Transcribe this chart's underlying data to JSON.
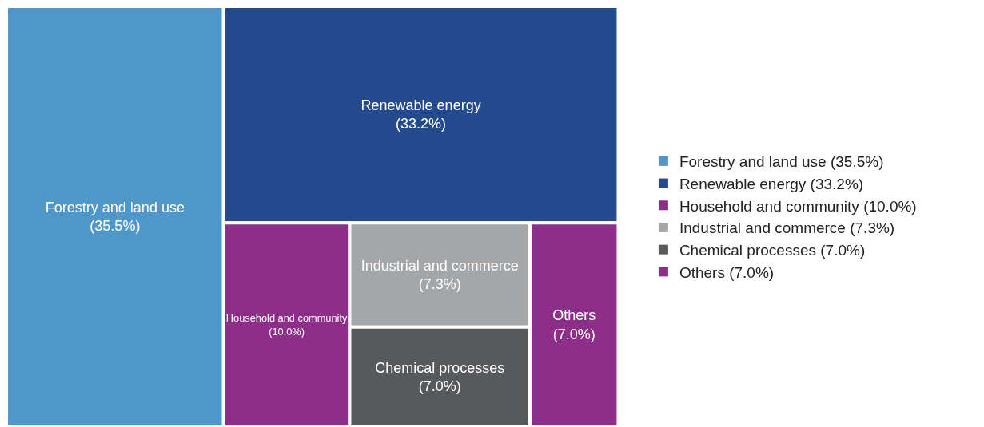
{
  "chart_data": {
    "type": "other",
    "categories": [
      "Forestry and land use",
      "Renewable energy",
      "Household and community",
      "Industrial and commerce",
      "Chemical processes",
      "Others"
    ],
    "values": [
      35.5,
      33.2,
      10.0,
      7.3,
      7.0,
      7.0
    ],
    "value_labels": [
      "(35.5%)",
      "(33.2%)",
      "(10.0%)",
      "(7.3%)",
      "(7.0%)",
      "(7.0%)"
    ],
    "colors": [
      "#4f97c9",
      "#224a8c",
      "#8d2f88",
      "#a5a6a8",
      "#58595b",
      "#8d2f88"
    ]
  }
}
